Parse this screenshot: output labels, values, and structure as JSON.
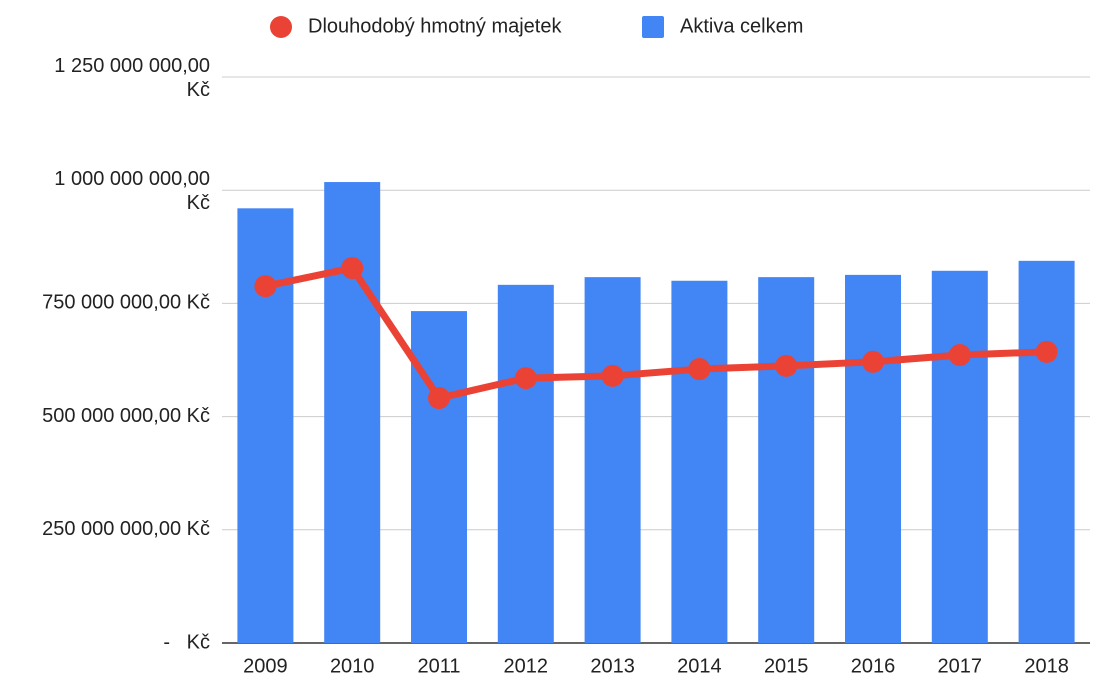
{
  "chart_data": {
    "type": "bar_line",
    "categories": [
      "2009",
      "2010",
      "2011",
      "2012",
      "2013",
      "2014",
      "2015",
      "2016",
      "2017",
      "2018"
    ],
    "series": [
      {
        "name": "Dlouhodobý hmotný majetek",
        "type": "line",
        "color": "#ea4335",
        "values": [
          788000000,
          828000000,
          541000000,
          585000000,
          590000000,
          605000000,
          612000000,
          621000000,
          636000000,
          643000000
        ]
      },
      {
        "name": "Aktiva celkem",
        "type": "bar",
        "color": "#4285f4",
        "values": [
          960000000,
          1018000000,
          733000000,
          791000000,
          808000000,
          800000000,
          808000000,
          813000000,
          822000000,
          844000000
        ]
      }
    ],
    "ylim": [
      0,
      1250000000
    ],
    "yticks": [
      {
        "value": 0,
        "label": "-   Kč"
      },
      {
        "value": 250000000,
        "label": "250 000 000,00 Kč"
      },
      {
        "value": 500000000,
        "label": "500 000 000,00 Kč"
      },
      {
        "value": 750000000,
        "label": "750 000 000,00 Kč"
      },
      {
        "value": 1000000000,
        "label": "1 000 000 000,00 Kč"
      },
      {
        "value": 1250000000,
        "label": "1 250 000 000,00 Kč"
      }
    ],
    "grid": true,
    "legend": "top"
  }
}
